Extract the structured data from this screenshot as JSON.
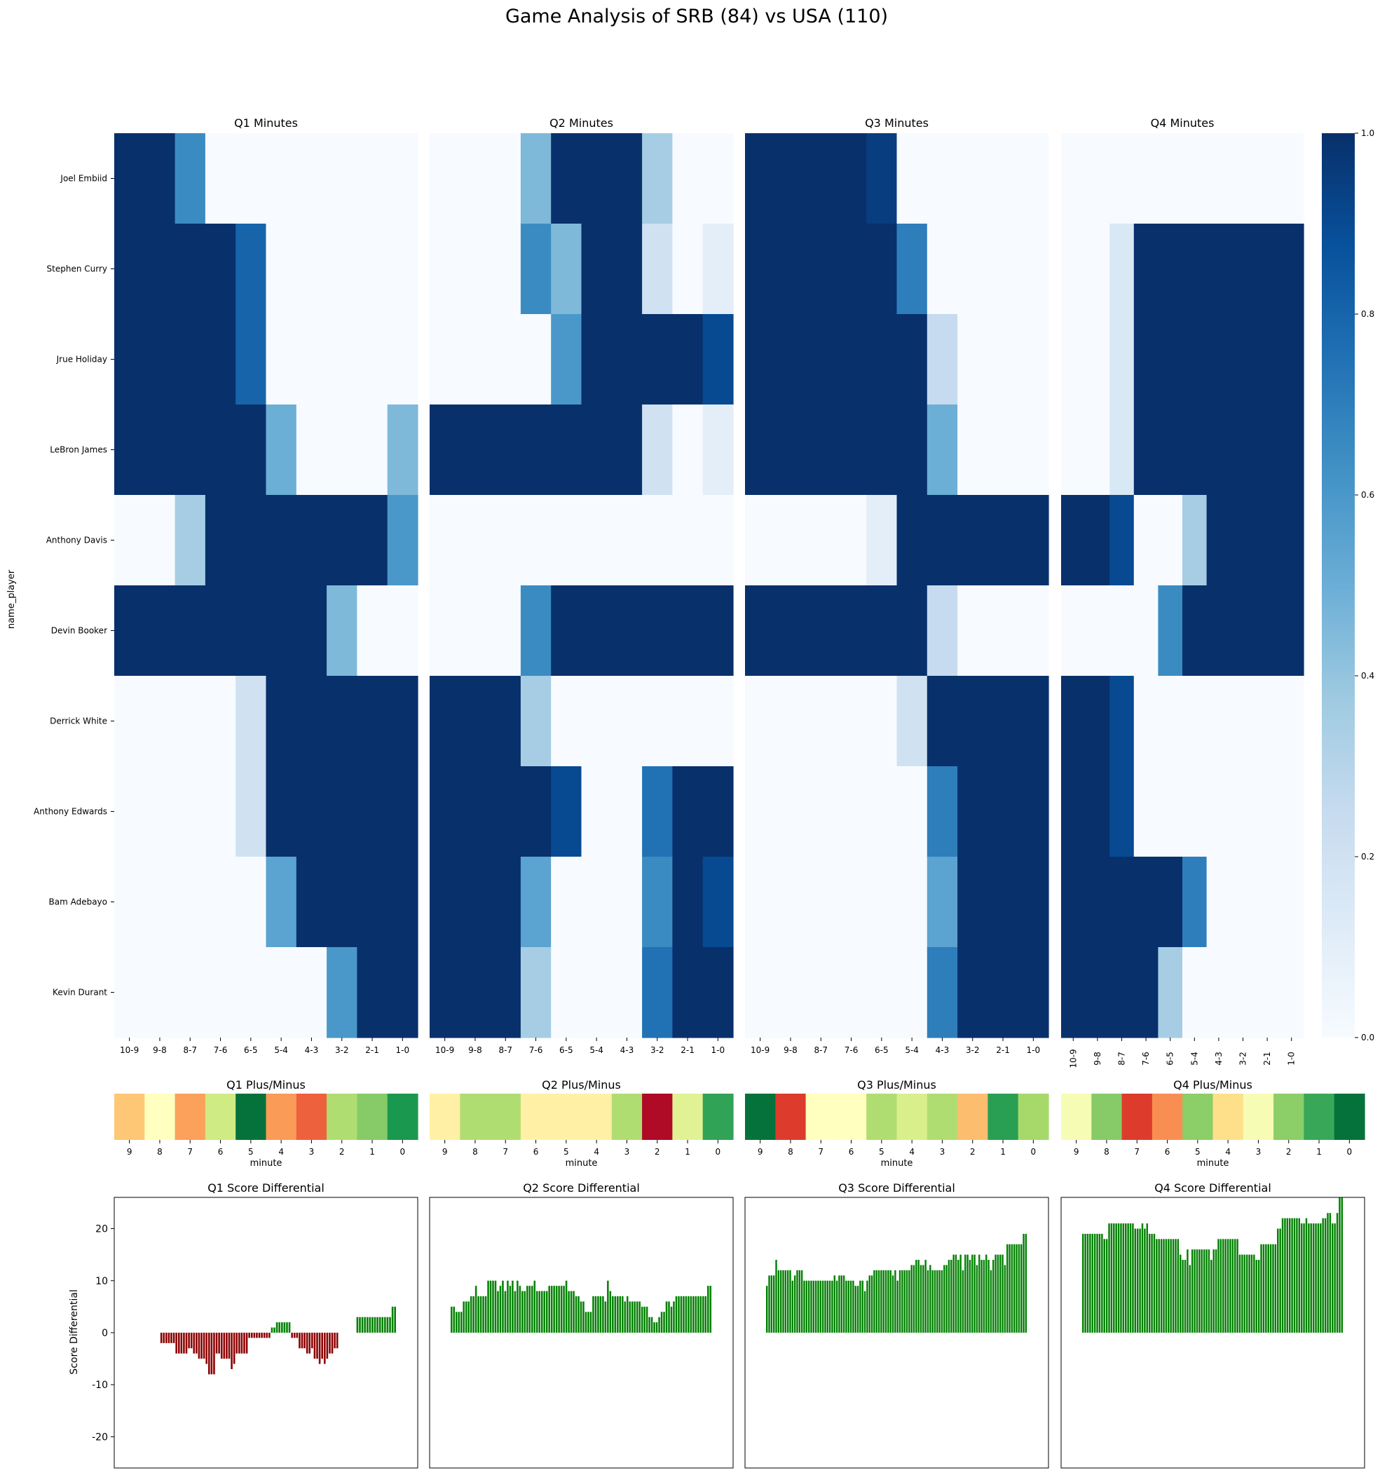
{
  "figure": {
    "title": "Game Analysis of SRB (84) vs USA (110)"
  },
  "chart_data": [
    {
      "type": "heatmap",
      "id": "minutes",
      "panel_titles": [
        "Q1 Minutes",
        "Q2 Minutes",
        "Q3 Minutes",
        "Q4 Minutes"
      ],
      "ylabel": "name_player",
      "xlabel": "",
      "players": [
        "Joel Embiid",
        "Stephen Curry",
        "Jrue Holiday",
        "LeBron James",
        "Anthony Davis",
        "Devin Booker",
        "Derrick White",
        "Anthony Edwards",
        "Bam Adebayo",
        "Kevin Durant"
      ],
      "x_ticks": [
        "10-9",
        "9-8",
        "8-7",
        "7-6",
        "6-5",
        "5-4",
        "4-3",
        "3-2",
        "2-1",
        "1-0"
      ],
      "colormap": "Blues",
      "colorbar": {
        "min": 0.0,
        "max": 1.0,
        "ticks": [
          "0.0",
          "0.2",
          "0.4",
          "0.6",
          "0.8",
          "1.0"
        ]
      },
      "values": [
        [
          [
            1,
            1,
            0.65,
            0,
            0,
            0,
            0,
            0,
            0,
            0
          ],
          [
            1,
            1,
            1,
            1,
            0.8,
            0,
            0,
            0,
            0,
            0
          ],
          [
            1,
            1,
            1,
            1,
            0.8,
            0,
            0,
            0,
            0,
            0
          ],
          [
            1,
            1,
            1,
            1,
            1,
            0.5,
            0,
            0,
            0,
            0.45
          ],
          [
            0,
            0,
            0.35,
            1,
            1,
            1,
            1,
            1,
            1,
            0.6
          ],
          [
            1,
            1,
            1,
            1,
            1,
            1,
            1,
            0.45,
            0,
            0
          ],
          [
            0,
            0,
            0,
            0,
            0.2,
            1,
            1,
            1,
            1,
            1
          ],
          [
            0,
            0,
            0,
            0,
            0.2,
            1,
            1,
            1,
            1,
            1
          ],
          [
            0,
            0,
            0,
            0,
            0,
            0.55,
            1,
            1,
            1,
            1
          ],
          [
            0,
            0,
            0,
            0,
            0,
            0,
            0,
            0.6,
            1,
            1
          ]
        ],
        [
          [
            0,
            0,
            0,
            0.45,
            1,
            1,
            1,
            0.35,
            0,
            0
          ],
          [
            0,
            0,
            0,
            0.65,
            0.45,
            1,
            1,
            0.2,
            0,
            0.1
          ],
          [
            0,
            0,
            0,
            0,
            0.6,
            1,
            1,
            1,
            1,
            0.9
          ],
          [
            1,
            1,
            1,
            1,
            1,
            1,
            1,
            0.2,
            0,
            0.1
          ],
          [
            0,
            0,
            0,
            0,
            0,
            0,
            0,
            0,
            0,
            0
          ],
          [
            0,
            0,
            0,
            0.65,
            1,
            1,
            1,
            1,
            1,
            1
          ],
          [
            1,
            1,
            1,
            0.35,
            0,
            0,
            0,
            0,
            0,
            0
          ],
          [
            1,
            1,
            1,
            1,
            0.9,
            0,
            0,
            0.75,
            1,
            1
          ],
          [
            1,
            1,
            1,
            0.55,
            0,
            0,
            0,
            0.65,
            1,
            0.9
          ],
          [
            1,
            1,
            1,
            0.35,
            0,
            0,
            0,
            0.75,
            1,
            1
          ]
        ],
        [
          [
            1,
            1,
            1,
            1,
            0.95,
            0,
            0,
            0,
            0,
            0
          ],
          [
            1,
            1,
            1,
            1,
            1,
            0.7,
            0,
            0,
            0,
            0
          ],
          [
            1,
            1,
            1,
            1,
            1,
            1,
            0.25,
            0,
            0,
            0
          ],
          [
            1,
            1,
            1,
            1,
            1,
            1,
            0.5,
            0,
            0,
            0
          ],
          [
            0,
            0,
            0,
            0,
            0.1,
            1,
            1,
            1,
            1,
            1
          ],
          [
            1,
            1,
            1,
            1,
            1,
            1,
            0.25,
            0,
            0,
            0
          ],
          [
            0,
            0,
            0,
            0,
            0,
            0.2,
            1,
            1,
            1,
            1
          ],
          [
            0,
            0,
            0,
            0,
            0,
            0,
            0.7,
            1,
            1,
            1
          ],
          [
            0,
            0,
            0,
            0,
            0,
            0,
            0.55,
            1,
            1,
            1
          ],
          [
            0,
            0,
            0,
            0,
            0,
            0,
            0.7,
            1,
            1,
            1
          ]
        ],
        [
          [
            0,
            0,
            0,
            0,
            0,
            0,
            0,
            0,
            0,
            0
          ],
          [
            0,
            0,
            0.15,
            1,
            1,
            1,
            1,
            1,
            1,
            1
          ],
          [
            0,
            0,
            0.15,
            1,
            1,
            1,
            1,
            1,
            1,
            1
          ],
          [
            0,
            0,
            0.15,
            1,
            1,
            1,
            1,
            1,
            1,
            1
          ],
          [
            1,
            1,
            0.9,
            0,
            0,
            0.35,
            1,
            1,
            1,
            1
          ],
          [
            0,
            0,
            0,
            0,
            0.65,
            1,
            1,
            1,
            1,
            1
          ],
          [
            1,
            1,
            0.9,
            0,
            0,
            0,
            0,
            0,
            0,
            0
          ],
          [
            1,
            1,
            0.9,
            0,
            0,
            0,
            0,
            0,
            0,
            0
          ],
          [
            1,
            1,
            1,
            1,
            1,
            0.7,
            0,
            0,
            0,
            0
          ],
          [
            1,
            1,
            1,
            1,
            0.35,
            0,
            0,
            0,
            0,
            0
          ]
        ]
      ]
    },
    {
      "type": "heatmap",
      "id": "plus_minus",
      "panel_titles": [
        "Q1 Plus/Minus",
        "Q2 Plus/Minus",
        "Q3 Plus/Minus",
        "Q4 Plus/Minus"
      ],
      "xlabel": "minute",
      "x_ticks": [
        "9",
        "8",
        "7",
        "6",
        "5",
        "4",
        "3",
        "2",
        "1",
        "0"
      ],
      "colormap": "RdYlGn",
      "color_position": [
        [
          0.35,
          0.5,
          0.28,
          0.62,
          0.98,
          0.27,
          0.18,
          0.68,
          0.75,
          0.9
        ],
        [
          0.45,
          0.68,
          0.68,
          0.45,
          0.45,
          0.45,
          0.68,
          0.02,
          0.58,
          0.87
        ],
        [
          0.98,
          0.12,
          0.5,
          0.5,
          0.68,
          0.6,
          0.68,
          0.33,
          0.88,
          0.7
        ],
        [
          0.52,
          0.75,
          0.12,
          0.25,
          0.74,
          0.4,
          0.52,
          0.74,
          0.86,
          0.98
        ]
      ]
    },
    {
      "type": "bar",
      "id": "score_differential",
      "panel_titles": [
        "Q1 Score Differential",
        "Q2 Score Differential",
        "Q3 Score Differential",
        "Q4 Score Differential"
      ],
      "ylabel": "Score Differential",
      "xlabel": "",
      "ylim": [
        -26,
        26
      ],
      "y_ticks": [
        20,
        10,
        0,
        -10,
        -20
      ],
      "colors": {
        "positive": "#008000",
        "negative": "#8b0000"
      },
      "series": [
        {
          "values": [
            0,
            0,
            0,
            0,
            0,
            0,
            0,
            0,
            0,
            0,
            -2,
            -2,
            -2,
            -2,
            -2,
            -2,
            -4,
            -4,
            -4,
            -4,
            -4,
            -3,
            -3,
            -4,
            -4,
            -5,
            -5,
            -5,
            -6,
            -8,
            -8,
            -8,
            -4,
            -4,
            -5,
            -5,
            -5,
            -5,
            -7,
            -6,
            -4,
            -4,
            -4,
            -4,
            -4,
            -1,
            -1,
            -1,
            -1,
            -1,
            -1,
            -1,
            -1,
            -1,
            1,
            1,
            2,
            2,
            2,
            2,
            2,
            2,
            -1,
            -1,
            -1,
            -3,
            -3,
            -3,
            -4,
            -4,
            -3,
            -5,
            -5,
            -6,
            -5,
            -6,
            -5,
            -4,
            -4,
            -3,
            -3,
            0,
            0,
            0,
            0,
            0,
            0,
            0,
            3,
            3,
            3,
            3,
            3,
            3,
            3,
            3,
            3,
            3,
            3,
            3,
            3,
            3,
            5,
            5
          ]
        },
        {
          "values": [
            5,
            5,
            4,
            4,
            4,
            6,
            6,
            6,
            7,
            7,
            9,
            7,
            7,
            7,
            7,
            10,
            10,
            10,
            10,
            8,
            9,
            10,
            8,
            10,
            9,
            10,
            8,
            10,
            9,
            8,
            8,
            9,
            9,
            9,
            10,
            8,
            8,
            8,
            8,
            8,
            9,
            9,
            9,
            9,
            9,
            9,
            9,
            10,
            8,
            8,
            8,
            7,
            7,
            6,
            6,
            4,
            4,
            4,
            7,
            7,
            7,
            7,
            7,
            6,
            10,
            8,
            7,
            7,
            7,
            7,
            7,
            6,
            7,
            6,
            6,
            6,
            6,
            6,
            5,
            5,
            5,
            3,
            3,
            2,
            2,
            3,
            4,
            4,
            6,
            6,
            5,
            6,
            7,
            7,
            7,
            7,
            7,
            7,
            7,
            7,
            7,
            7,
            7,
            7,
            7,
            9,
            9
          ]
        },
        {
          "values": [
            9,
            11,
            11,
            11,
            14,
            12,
            12,
            12,
            12,
            12,
            12,
            10,
            11,
            12,
            12,
            12,
            10,
            10,
            10,
            10,
            10,
            10,
            10,
            10,
            10,
            10,
            10,
            10,
            10,
            11,
            10,
            11,
            11,
            11,
            10,
            10,
            10,
            10,
            9,
            9,
            10,
            10,
            8,
            10,
            11,
            11,
            12,
            12,
            12,
            12,
            12,
            12,
            12,
            12,
            11,
            12,
            10,
            12,
            12,
            12,
            12,
            12,
            13,
            13,
            14,
            14,
            13,
            13,
            14,
            12,
            13,
            12,
            12,
            12,
            12,
            12,
            13,
            13,
            14,
            14,
            15,
            15,
            14,
            15,
            12,
            15,
            15,
            14,
            15,
            15,
            13,
            15,
            14,
            14,
            15,
            14,
            12,
            14,
            15,
            15,
            15,
            15,
            13,
            17,
            17,
            17,
            17,
            17,
            17,
            17,
            19,
            19
          ]
        },
        {
          "values": [
            19,
            19,
            19,
            19,
            19,
            19,
            19,
            19,
            19,
            18,
            18,
            21,
            21,
            21,
            21,
            21,
            21,
            21,
            21,
            21,
            21,
            21,
            20,
            20,
            20,
            21,
            20,
            21,
            19,
            19,
            19,
            18,
            18,
            18,
            18,
            18,
            18,
            18,
            18,
            18,
            18,
            15,
            14,
            14,
            16,
            13,
            16,
            16,
            16,
            16,
            16,
            16,
            16,
            16,
            14,
            16,
            16,
            18,
            18,
            18,
            18,
            18,
            18,
            18,
            18,
            18,
            15,
            15,
            15,
            15,
            15,
            15,
            15,
            14,
            14,
            17,
            17,
            17,
            17,
            17,
            17,
            17,
            20,
            20,
            22,
            22,
            22,
            22,
            22,
            22,
            22,
            22,
            21,
            21,
            22,
            21,
            21,
            21,
            21,
            21,
            21,
            22,
            22,
            23,
            23,
            21,
            21,
            23,
            26,
            26
          ]
        }
      ]
    }
  ]
}
